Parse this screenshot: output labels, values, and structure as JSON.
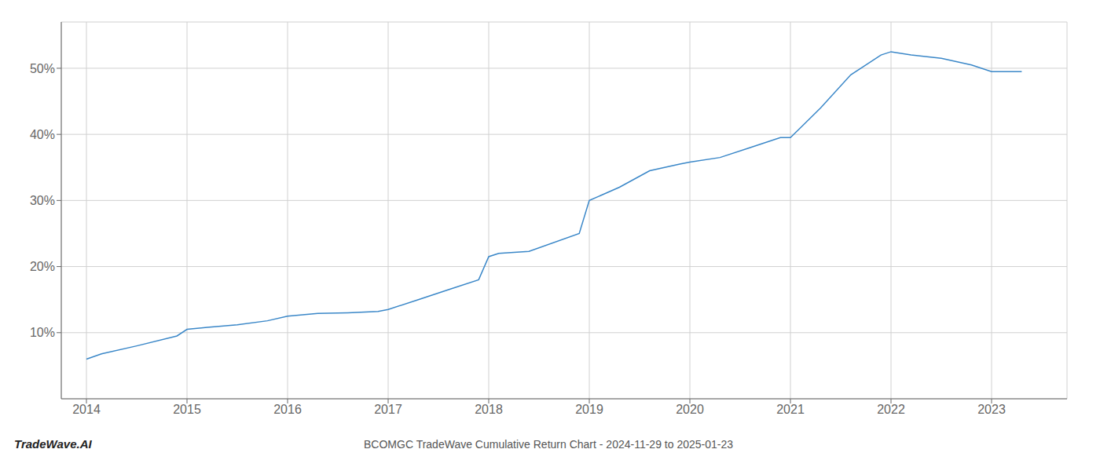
{
  "chart_data": {
    "type": "line",
    "title": "BCOMGC TradeWave Cumulative Return Chart - 2024-11-29 to 2025-01-23",
    "annotations": [
      "TradeWave.AI"
    ],
    "color": "#3a87c8",
    "grid": true,
    "x": [
      2014.0,
      2014.15,
      2014.5,
      2014.9,
      2015.0,
      2015.2,
      2015.5,
      2015.8,
      2016.0,
      2016.3,
      2016.6,
      2016.9,
      2017.0,
      2017.3,
      2017.6,
      2017.9,
      2018.0,
      2018.1,
      2018.4,
      2018.9,
      2019.0,
      2019.3,
      2019.6,
      2019.9,
      2020.0,
      2020.3,
      2020.6,
      2020.9,
      2021.0,
      2021.3,
      2021.6,
      2021.9,
      2022.0,
      2022.2,
      2022.5,
      2022.8,
      2023.0,
      2023.3
    ],
    "values": [
      6.0,
      6.8,
      8.0,
      9.5,
      10.5,
      10.8,
      11.2,
      11.8,
      12.5,
      12.9,
      13.0,
      13.2,
      13.5,
      15.0,
      16.5,
      18.0,
      21.5,
      22.0,
      22.3,
      25.0,
      30.0,
      32.0,
      34.5,
      35.5,
      35.8,
      36.5,
      38.0,
      39.5,
      39.5,
      44.0,
      49.0,
      52.0,
      52.5,
      52.0,
      51.5,
      50.5,
      49.5,
      49.5
    ],
    "xlim": [
      2013.75,
      2023.75
    ],
    "ylim": [
      0,
      57
    ],
    "xticks": [
      2014,
      2015,
      2016,
      2017,
      2018,
      2019,
      2020,
      2021,
      2022,
      2023
    ],
    "yticks": [
      {
        "value": 10,
        "label": "10%"
      },
      {
        "value": 20,
        "label": "20%"
      },
      {
        "value": 30,
        "label": "30%"
      },
      {
        "value": 40,
        "label": "40%"
      },
      {
        "value": 50,
        "label": "50%"
      }
    ]
  }
}
